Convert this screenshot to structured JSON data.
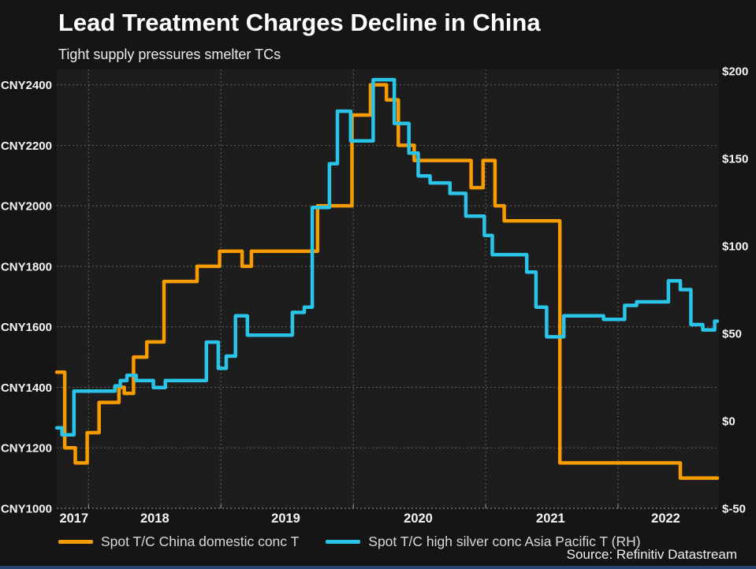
{
  "header": {
    "title": "Lead Treatment Charges Decline in China",
    "subtitle": "Tight supply pressures smelter TCs"
  },
  "source": "Source: Refinitiv Datastream",
  "colors": {
    "background": "#151515",
    "plot_background": "#1d1d1d",
    "grid": "#636363",
    "axis_line": "#9a9a9a",
    "text": "#f5f5f5",
    "accent_bar": "#274572",
    "series_domestic": "#f79c00",
    "series_high_silver": "#2bc4e9"
  },
  "legend": [
    {
      "label": "Spot T/C China domestic conc T",
      "color": "#f79c00"
    },
    {
      "label": "Spot T/C high silver conc Asia Pacific T (RH)",
      "color": "#2bc4e9"
    }
  ],
  "chart_data": {
    "type": "line",
    "style": "step-after",
    "title": "Lead Treatment Charges Decline in China",
    "subtitle": "Tight supply pressures smelter TCs",
    "x_axis": {
      "domain": [
        2017.76,
        2022.75
      ],
      "gridline_years": [
        2018,
        2019,
        2020,
        2021,
        2022
      ],
      "labels": [
        "2017",
        "2018",
        "2019",
        "2020",
        "2021",
        "2022"
      ],
      "label_positions": [
        2017.89,
        2018.5,
        2019.49,
        2020.49,
        2021.49,
        2022.36
      ]
    },
    "left_axis": {
      "unit": "CNY",
      "range": [
        1000,
        2400
      ],
      "ticks": [
        2400,
        2200,
        2000,
        1800,
        1600,
        1400,
        1200,
        1000
      ],
      "labels": [
        "CNY2400",
        "CNY2200",
        "CNY2000",
        "CNY1800",
        "CNY1600",
        "CNY1400",
        "CNY1200",
        "CNY1000"
      ]
    },
    "right_axis": {
      "unit": "USD",
      "range": [
        -50,
        200
      ],
      "ticks": [
        200,
        150,
        100,
        50,
        0,
        -50
      ],
      "labels": [
        "$200",
        "$150",
        "$100",
        "$50",
        "$0",
        "$-50"
      ]
    },
    "series": [
      {
        "name": "Spot T/C China domestic conc T",
        "axis": "left",
        "color": "#f79c00",
        "points": [
          [
            2017.76,
            1450
          ],
          [
            2017.82,
            1200
          ],
          [
            2017.9,
            1150
          ],
          [
            2017.99,
            1250
          ],
          [
            2018.08,
            1350
          ],
          [
            2018.23,
            1400
          ],
          [
            2018.27,
            1380
          ],
          [
            2018.34,
            1500
          ],
          [
            2018.44,
            1550
          ],
          [
            2018.57,
            1750
          ],
          [
            2018.82,
            1800
          ],
          [
            2018.99,
            1850
          ],
          [
            2019.16,
            1800
          ],
          [
            2019.23,
            1850
          ],
          [
            2019.73,
            2000
          ],
          [
            2019.99,
            2300
          ],
          [
            2020.13,
            2400
          ],
          [
            2020.25,
            2350
          ],
          [
            2020.34,
            2200
          ],
          [
            2020.46,
            2150
          ],
          [
            2020.89,
            2060
          ],
          [
            2020.98,
            2150
          ],
          [
            2021.07,
            2000
          ],
          [
            2021.14,
            1950
          ],
          [
            2021.56,
            1150
          ],
          [
            2022.47,
            1100
          ]
        ]
      },
      {
        "name": "Spot T/C high silver conc Asia Pacific T (RH)",
        "axis": "right",
        "color": "#2bc4e9",
        "points": [
          [
            2017.76,
            -4
          ],
          [
            2017.8,
            -8
          ],
          [
            2017.89,
            17
          ],
          [
            2018.2,
            20
          ],
          [
            2018.24,
            23
          ],
          [
            2018.29,
            26
          ],
          [
            2018.36,
            23
          ],
          [
            2018.49,
            19
          ],
          [
            2018.58,
            23
          ],
          [
            2018.89,
            45
          ],
          [
            2018.98,
            30
          ],
          [
            2019.04,
            37
          ],
          [
            2019.11,
            60
          ],
          [
            2019.2,
            49
          ],
          [
            2019.54,
            62
          ],
          [
            2019.63,
            65
          ],
          [
            2019.69,
            122
          ],
          [
            2019.82,
            147
          ],
          [
            2019.88,
            177
          ],
          [
            2019.98,
            160
          ],
          [
            2020.15,
            195
          ],
          [
            2020.31,
            170
          ],
          [
            2020.42,
            153
          ],
          [
            2020.49,
            140
          ],
          [
            2020.58,
            136
          ],
          [
            2020.73,
            130
          ],
          [
            2020.85,
            117
          ],
          [
            2020.99,
            106
          ],
          [
            2021.05,
            95
          ],
          [
            2021.31,
            85
          ],
          [
            2021.38,
            65
          ],
          [
            2021.46,
            48
          ],
          [
            2021.59,
            60
          ],
          [
            2021.89,
            58
          ],
          [
            2022.05,
            66
          ],
          [
            2022.14,
            68
          ],
          [
            2022.38,
            80
          ],
          [
            2022.47,
            75
          ],
          [
            2022.55,
            55
          ],
          [
            2022.64,
            52
          ],
          [
            2022.73,
            57
          ]
        ]
      }
    ]
  }
}
